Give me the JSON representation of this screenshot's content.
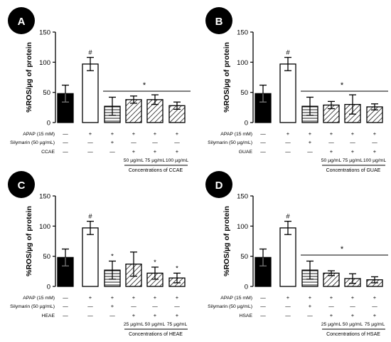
{
  "chart_data": [
    {
      "type": "bar",
      "panel_label": "A",
      "ylabel": "%ROS/µg of protein",
      "ylim": [
        0,
        150
      ],
      "yticks": [
        "0",
        "50",
        "100",
        "150"
      ],
      "categories": [
        "Control",
        "APAP",
        "APAP + Silymarin",
        "APAP + 50 µg/mL CCAE",
        "APAP + 75 µg/mL CCAE",
        "APAP + 100 µg/mL CCAE"
      ],
      "values": [
        48,
        97,
        27,
        38,
        38,
        28
      ],
      "errors": [
        14,
        11,
        15,
        6,
        8,
        6
      ],
      "fills": [
        "black",
        "white",
        "horizontal",
        "diagonal",
        "diagonal",
        "diagonal"
      ],
      "annotations": [
        "",
        "#",
        "",
        "",
        "",
        ""
      ],
      "group_star": "*",
      "row_labels": [
        "APAP (15 mM)",
        "Silymarin (50 µg/mL)",
        "CCAE"
      ],
      "row_values": [
        [
          "—",
          "+",
          "+",
          "+",
          "+",
          "+"
        ],
        [
          "—",
          "—",
          "+",
          "—",
          "—",
          "—"
        ],
        [
          "—",
          "—",
          "—",
          "+",
          "+",
          "+"
        ]
      ],
      "conc_labels": [
        "50 µg/mL",
        "75 µg/mL",
        "100 µg/mL"
      ],
      "conc_caption": "Concentrations of CCAE"
    },
    {
      "type": "bar",
      "panel_label": "B",
      "ylabel": "%ROS/µg of protein",
      "ylim": [
        0,
        150
      ],
      "yticks": [
        "0",
        "50",
        "100",
        "150"
      ],
      "categories": [
        "Control",
        "APAP",
        "APAP + Silymarin",
        "APAP + 50 µg/mL GUAE",
        "APAP + 75 µg/mL GUAE",
        "APAP + 100 µg/mL GUAE"
      ],
      "values": [
        48,
        97,
        27,
        29,
        30,
        26
      ],
      "errors": [
        14,
        11,
        15,
        6,
        16,
        5
      ],
      "fills": [
        "black",
        "white",
        "horizontal",
        "diagonal",
        "diagonal",
        "diagonal"
      ],
      "annotations": [
        "",
        "#",
        "",
        "",
        "",
        ""
      ],
      "group_star": "*",
      "row_labels": [
        "APAP (15 mM)",
        "Silymarin (50 µg/mL)",
        "GUAE"
      ],
      "row_values": [
        [
          "—",
          "+",
          "+",
          "+",
          "+",
          "+"
        ],
        [
          "—",
          "—",
          "+",
          "—",
          "—",
          "—"
        ],
        [
          "—",
          "—",
          "—",
          "+",
          "+",
          "+"
        ]
      ],
      "conc_labels": [
        "50 µg/mL",
        "75 µg/mL",
        "100 µg/mL"
      ],
      "conc_caption": "Concentrations of GUAE"
    },
    {
      "type": "bar",
      "panel_label": "C",
      "ylabel": "%ROS/µg of protein",
      "ylim": [
        0,
        150
      ],
      "yticks": [
        "0",
        "50",
        "100",
        "150"
      ],
      "categories": [
        "Control",
        "APAP",
        "APAP + Silymarin",
        "APAP + 25 µg/mL HEAE",
        "APAP + 50 µg/mL HEAE",
        "APAP + 75 µg/mL HEAE"
      ],
      "values": [
        48,
        97,
        27,
        37,
        22,
        14
      ],
      "errors": [
        14,
        11,
        15,
        20,
        10,
        8
      ],
      "fills": [
        "black",
        "white",
        "horizontal",
        "diagonal",
        "diagonal",
        "diagonal"
      ],
      "annotations": [
        "",
        "#",
        "*",
        "",
        "*",
        "*"
      ],
      "group_star": "",
      "row_labels": [
        "APAP (15 mM)",
        "Silymarin (50 µg/mL)",
        "HEAE"
      ],
      "row_values": [
        [
          "—",
          "+",
          "+",
          "+",
          "+",
          "+"
        ],
        [
          "—",
          "—",
          "+",
          "—",
          "—",
          "—"
        ],
        [
          "—",
          "—",
          "—",
          "+",
          "+",
          "+"
        ]
      ],
      "conc_labels": [
        "25 µg/mL",
        "50 µg/mL",
        "75 µg/mL"
      ],
      "conc_caption": "Concentrations of HEAE"
    },
    {
      "type": "bar",
      "panel_label": "D",
      "ylabel": "%ROS/µg of protein",
      "ylim": [
        0,
        150
      ],
      "yticks": [
        "0",
        "50",
        "100",
        "150"
      ],
      "categories": [
        "Control",
        "APAP",
        "APAP + Silymarin",
        "APAP + 25 µg/mL HSAE",
        "APAP + 50 µg/mL HSAE",
        "APAP + 75 µg/mL HSAE"
      ],
      "values": [
        48,
        97,
        27,
        22,
        13,
        11
      ],
      "errors": [
        14,
        11,
        15,
        4,
        8,
        5
      ],
      "fills": [
        "black",
        "white",
        "horizontal",
        "diagonal",
        "diagonal",
        "diagonal"
      ],
      "annotations": [
        "",
        "#",
        "",
        "",
        "",
        ""
      ],
      "group_star": "*",
      "row_labels": [
        "APAP (15 mM)",
        "Silymarin (50 µg/mL)",
        "HSAE"
      ],
      "row_values": [
        [
          "—",
          "+",
          "+",
          "+",
          "+",
          "+"
        ],
        [
          "—",
          "—",
          "+",
          "—",
          "—",
          "—"
        ],
        [
          "—",
          "—",
          "—",
          "+",
          "+",
          "+"
        ]
      ],
      "conc_labels": [
        "25 µg/mL",
        "50 µg/mL",
        "75 µg/mL"
      ],
      "conc_caption": "Concentrations of HSAE"
    }
  ]
}
